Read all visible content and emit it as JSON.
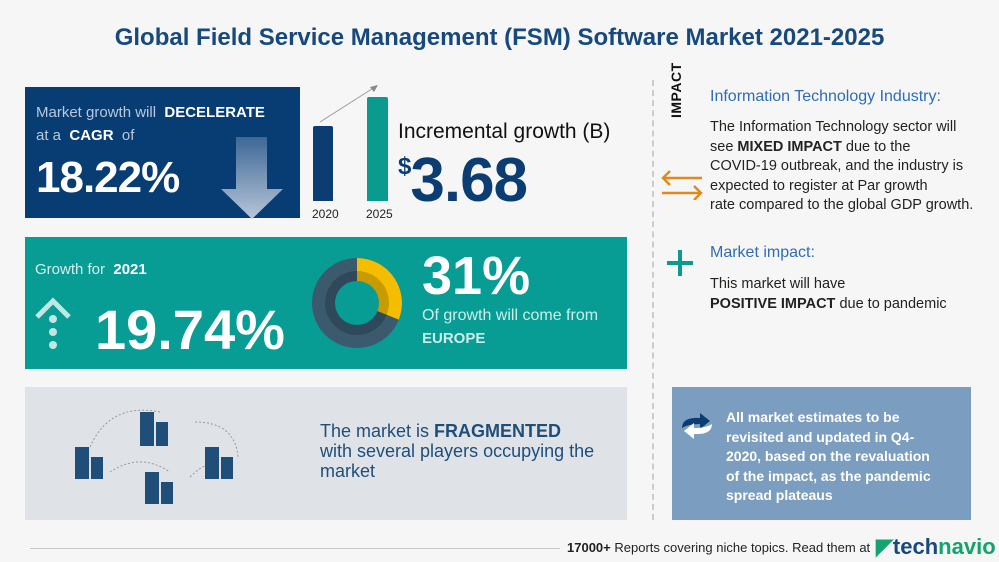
{
  "title": "Global Field Service Management (FSM) Software Market 2021-2025",
  "cagr": {
    "line1_pre": "Market growth will",
    "line1_bold": "DECELERATE",
    "line2_pre": "at a",
    "line2_bold": "CAGR",
    "line2_post": "of",
    "value": "18.22%"
  },
  "incremental": {
    "bars": [
      {
        "year": "2020",
        "color": "#0b3d73"
      },
      {
        "year": "2025",
        "color": "#0a9a8e"
      }
    ],
    "label": "Incremental growth (B)",
    "currency": "$",
    "value": "3.68"
  },
  "growth": {
    "label_pre": "Growth for",
    "label_year": "2021",
    "value": "19.74%",
    "region_share": "31%",
    "region_share_fraction": 0.31,
    "region_text": "Of growth will come from",
    "region": "EUROPE"
  },
  "market": {
    "pre": "The market is",
    "bold": "FRAGMENTED",
    "post": "with several players occupying the market"
  },
  "impact": {
    "vertical_label": "IMPACT",
    "industry_heading": "Information Technology Industry:",
    "industry_lines": [
      "The Information Technology sector will",
      "due to the",
      "COVID-19 outbreak, and the industry is",
      "expected to register at Par growth",
      "rate compared to the global GDP growth."
    ],
    "industry_pre": "see",
    "industry_bold": "MIXED IMPACT",
    "market_heading": "Market impact:",
    "market_line1": "This market will have",
    "market_bold": "POSITIVE IMPACT",
    "market_post": "due to pandemic"
  },
  "note": "All market estimates to be revisited and updated in Q4-2020, based on the revaluation of the impact, as the pandemic spread plateaus",
  "footer": {
    "count": "17000+",
    "text": "Reports covering niche topics. Read them at",
    "logo_a": "tech",
    "logo_b": "navio"
  },
  "colors": {
    "navy": "#073d73",
    "teal": "#079c94",
    "yellow": "#f5bd00",
    "orange": "#e08a1e"
  }
}
